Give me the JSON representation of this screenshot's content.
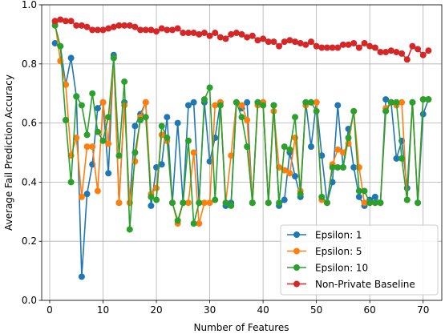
{
  "chart_data": {
    "type": "line",
    "xlabel": "Number of Features",
    "ylabel": "Average Fail Prediction Accuracy",
    "xlim": [
      -1.5,
      73.5
    ],
    "ylim": [
      0.0,
      1.0
    ],
    "x_ticks": [
      0,
      10,
      20,
      30,
      40,
      50,
      60,
      70
    ],
    "y_ticks": [
      0.0,
      0.2,
      0.4,
      0.6,
      0.8,
      1.0
    ],
    "grid": true,
    "legend_position": "lower-right",
    "x": [
      1,
      2,
      3,
      4,
      5,
      6,
      7,
      8,
      9,
      10,
      11,
      12,
      13,
      14,
      15,
      16,
      17,
      18,
      19,
      20,
      21,
      22,
      23,
      24,
      25,
      26,
      27,
      28,
      29,
      30,
      31,
      32,
      33,
      34,
      35,
      36,
      37,
      38,
      39,
      40,
      41,
      42,
      43,
      44,
      45,
      46,
      47,
      48,
      49,
      50,
      51,
      52,
      53,
      54,
      55,
      56,
      57,
      58,
      59,
      60,
      61,
      62,
      63,
      64,
      65,
      66,
      67,
      68,
      69,
      70,
      71
    ],
    "series": [
      {
        "name": "Epsilon: 1",
        "color": "#1f77b4",
        "values": [
          0.87,
          0.86,
          0.73,
          0.82,
          0.69,
          0.08,
          0.36,
          0.46,
          0.65,
          0.67,
          0.43,
          0.83,
          0.33,
          0.67,
          0.33,
          0.59,
          0.63,
          0.67,
          0.32,
          0.45,
          0.46,
          0.62,
          0.33,
          0.6,
          0.33,
          0.66,
          0.67,
          0.33,
          0.67,
          0.47,
          0.55,
          0.67,
          0.32,
          0.33,
          0.67,
          0.65,
          0.67,
          0.33,
          0.67,
          0.67,
          0.33,
          0.66,
          0.32,
          0.34,
          0.5,
          0.42,
          0.35,
          0.67,
          0.52,
          0.67,
          0.49,
          0.33,
          0.4,
          0.66,
          0.45,
          0.58,
          0.45,
          0.35,
          0.32,
          0.34,
          0.35,
          0.33,
          0.68,
          0.67,
          0.48,
          0.54,
          0.38,
          0.67,
          0.33,
          0.63,
          0.68
        ]
      },
      {
        "name": "Epsilon: 5",
        "color": "#ff7f0e",
        "values": [
          0.94,
          0.81,
          0.73,
          0.49,
          0.55,
          0.35,
          0.52,
          0.52,
          0.37,
          0.67,
          0.53,
          0.82,
          0.33,
          0.66,
          0.33,
          0.47,
          0.62,
          0.67,
          0.36,
          0.38,
          0.56,
          0.54,
          0.33,
          0.26,
          0.33,
          0.33,
          0.5,
          0.26,
          0.33,
          0.33,
          0.66,
          0.67,
          0.33,
          0.49,
          0.67,
          0.66,
          0.61,
          0.33,
          0.66,
          0.67,
          0.33,
          0.64,
          0.45,
          0.44,
          0.43,
          0.55,
          0.37,
          0.66,
          0.67,
          0.67,
          0.34,
          0.33,
          0.46,
          0.51,
          0.5,
          0.53,
          0.64,
          0.45,
          0.33,
          0.33,
          0.33,
          0.33,
          0.65,
          0.67,
          0.66,
          0.67,
          0.34,
          0.67,
          0.33,
          0.68,
          0.68
        ]
      },
      {
        "name": "Epsilon: 10",
        "color": "#2ca02c",
        "values": [
          0.93,
          0.86,
          0.61,
          0.4,
          0.69,
          0.66,
          0.56,
          0.7,
          0.57,
          0.54,
          0.62,
          0.82,
          0.49,
          0.74,
          0.24,
          0.5,
          0.61,
          0.62,
          0.35,
          0.34,
          0.59,
          0.55,
          0.33,
          0.27,
          0.33,
          0.54,
          0.26,
          0.33,
          0.68,
          0.72,
          0.34,
          0.66,
          0.33,
          0.32,
          0.67,
          0.62,
          0.52,
          0.33,
          0.67,
          0.66,
          0.33,
          0.66,
          0.33,
          0.52,
          0.51,
          0.62,
          0.36,
          0.67,
          0.67,
          0.64,
          0.35,
          0.33,
          0.45,
          0.45,
          0.45,
          0.55,
          0.64,
          0.37,
          0.37,
          0.33,
          0.33,
          0.33,
          0.64,
          0.67,
          0.67,
          0.48,
          0.34,
          0.67,
          0.33,
          0.68,
          0.68
        ]
      },
      {
        "name": "Non-Private Baseline",
        "color": "#d62728",
        "values": [
          0.945,
          0.95,
          0.945,
          0.945,
          0.93,
          0.93,
          0.925,
          0.915,
          0.915,
          0.915,
          0.92,
          0.925,
          0.93,
          0.93,
          0.93,
          0.925,
          0.915,
          0.915,
          0.915,
          0.91,
          0.92,
          0.915,
          0.915,
          0.92,
          0.905,
          0.905,
          0.905,
          0.9,
          0.905,
          0.895,
          0.905,
          0.89,
          0.885,
          0.9,
          0.905,
          0.9,
          0.89,
          0.895,
          0.88,
          0.885,
          0.875,
          0.875,
          0.86,
          0.875,
          0.88,
          0.875,
          0.87,
          0.865,
          0.875,
          0.86,
          0.855,
          0.855,
          0.855,
          0.855,
          0.865,
          0.865,
          0.87,
          0.855,
          0.87,
          0.86,
          0.855,
          0.84,
          0.84,
          0.845,
          0.84,
          0.835,
          0.815,
          0.86,
          0.85,
          0.83,
          0.845
        ]
      }
    ]
  }
}
